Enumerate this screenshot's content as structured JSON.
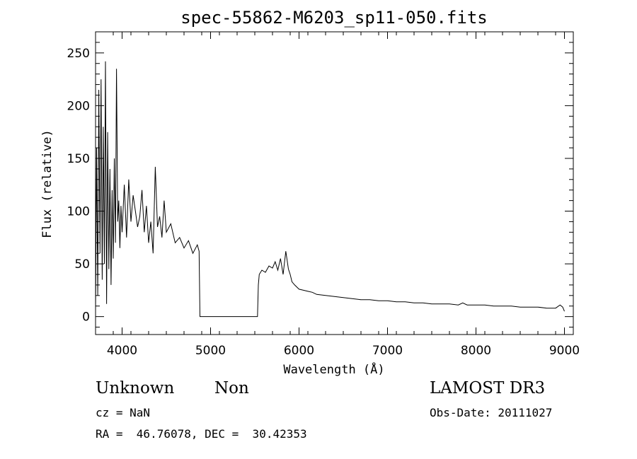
{
  "chart_data": {
    "type": "line",
    "title": "spec-55862-M6203_sp11-050.fits",
    "xlabel": "Wavelength (Å)",
    "ylabel": "Flux (relative)",
    "xlim": [
      3700,
      9100
    ],
    "ylim": [
      -17,
      270
    ],
    "xticks": [
      4000,
      5000,
      6000,
      7000,
      8000,
      9000
    ],
    "yticks": [
      0,
      50,
      100,
      150,
      200,
      250
    ],
    "grid": false,
    "legend": "none",
    "series": [
      {
        "color": "#000000",
        "x": [
          3700,
          3712,
          3725,
          3737,
          3750,
          3762,
          3775,
          3787,
          3800,
          3812,
          3825,
          3837,
          3850,
          3862,
          3875,
          3887,
          3900,
          3912,
          3925,
          3937,
          3950,
          3962,
          3975,
          3987,
          4000,
          4025,
          4050,
          4075,
          4100,
          4125,
          4150,
          4175,
          4200,
          4225,
          4250,
          4275,
          4300,
          4325,
          4350,
          4375,
          4400,
          4425,
          4450,
          4475,
          4500,
          4550,
          4600,
          4650,
          4700,
          4750,
          4800,
          4850,
          4870,
          4880,
          4890,
          5000,
          5200,
          5400,
          5530,
          5540,
          5550,
          5580,
          5620,
          5660,
          5700,
          5730,
          5760,
          5790,
          5820,
          5850,
          5880,
          5900,
          5920,
          5950,
          6000,
          6050,
          6100,
          6150,
          6200,
          6300,
          6400,
          6500,
          6600,
          6700,
          6800,
          6900,
          7000,
          7100,
          7200,
          7300,
          7400,
          7500,
          7600,
          7700,
          7800,
          7850,
          7900,
          8000,
          8100,
          8200,
          8300,
          8400,
          8500,
          8600,
          8700,
          8800,
          8900,
          8950,
          8980,
          9000
        ],
        "y": [
          5,
          160,
          20,
          215,
          60,
          225,
          35,
          180,
          50,
          242,
          12,
          175,
          45,
          140,
          30,
          120,
          55,
          150,
          70,
          235,
          90,
          110,
          65,
          105,
          80,
          125,
          75,
          130,
          90,
          115,
          100,
          85,
          95,
          120,
          80,
          105,
          70,
          90,
          60,
          142,
          85,
          95,
          75,
          110,
          80,
          88,
          70,
          75,
          65,
          72,
          60,
          68,
          62,
          0,
          0,
          0,
          0,
          0,
          0,
          30,
          40,
          44,
          42,
          48,
          46,
          52,
          44,
          55,
          40,
          62,
          45,
          40,
          33,
          30,
          26,
          25,
          24,
          23,
          21,
          20,
          19,
          18,
          17,
          16,
          16,
          15,
          15,
          14,
          14,
          13,
          13,
          12,
          12,
          12,
          11,
          13,
          11,
          11,
          11,
          10,
          10,
          10,
          9,
          9,
          9,
          8,
          8,
          11,
          9,
          5
        ]
      }
    ]
  },
  "info": {
    "class_label": "Unknown",
    "subclass_label": "Non",
    "survey": "LAMOST DR3",
    "cz": "cz = NaN",
    "obs_date": "Obs-Date: 20111027",
    "coords": "RA =  46.76078, DEC =  30.42353"
  }
}
